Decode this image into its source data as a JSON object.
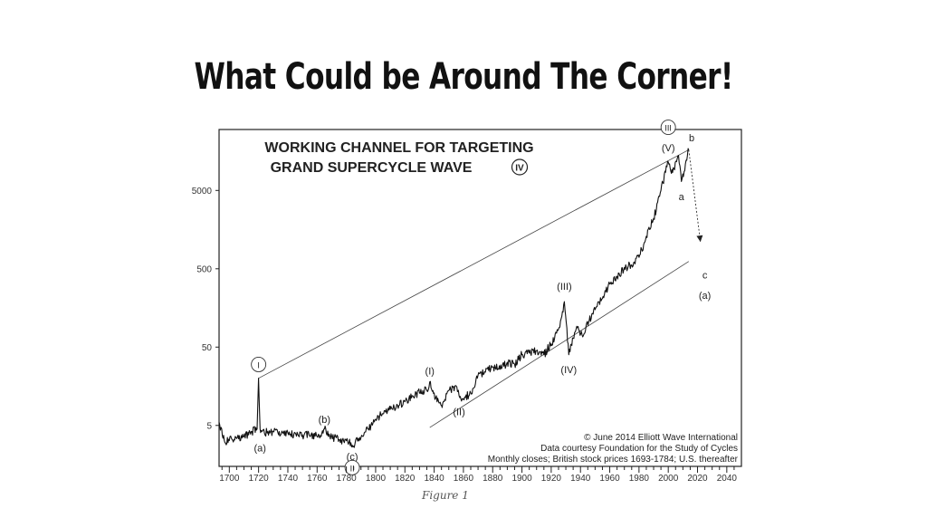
{
  "slide": {
    "title": "What Could be Around The Corner!"
  },
  "figure_caption": "Figure 1",
  "chart_data": {
    "type": "line",
    "title": "WORKING CHANNEL FOR TARGETING",
    "subtitle": "GRAND SUPERCYCLE WAVE",
    "subtitle_symbol": "IV",
    "y_scale": "log",
    "xlim": [
      1693,
      2050
    ],
    "ylim": [
      1.5,
      30000
    ],
    "x_ticks": [
      1700,
      1720,
      1740,
      1760,
      1780,
      1800,
      1820,
      1840,
      1860,
      1880,
      1900,
      1920,
      1940,
      1960,
      1980,
      2000,
      2020,
      2040
    ],
    "y_ticks": [
      5,
      50,
      500,
      5000
    ],
    "grid": false,
    "credits": [
      "© June 2014 Elliott Wave International",
      "Data courtesy Foundation for the Study of Cycles",
      "Monthly closes; British stock prices 1693-1784; U.S. thereafter"
    ],
    "series": [
      {
        "x": [
          1693,
          1697,
          1700,
          1705,
          1710,
          1715,
          1719,
          1720,
          1721,
          1724,
          1730,
          1740,
          1750,
          1760,
          1765,
          1770,
          1775,
          1780,
          1784,
          1790,
          1795,
          1800,
          1805,
          1810,
          1815,
          1820,
          1825,
          1830,
          1835,
          1837,
          1840,
          1842,
          1845,
          1850,
          1855,
          1857,
          1860,
          1865,
          1870,
          1875,
          1880,
          1885,
          1890,
          1895,
          1900,
          1905,
          1910,
          1915,
          1920,
          1925,
          1929,
          1932,
          1935,
          1937,
          1942,
          1946,
          1950,
          1955,
          1960,
          1965,
          1970,
          1975,
          1980,
          1985,
          1990,
          1995,
          2000,
          2003,
          2007,
          2009,
          2014
        ],
        "y": [
          5.5,
          3,
          3.2,
          3.4,
          3.6,
          4.2,
          4.5,
          20,
          4.5,
          4,
          4.2,
          4,
          3.8,
          3.6,
          4.5,
          3.6,
          3.3,
          3.2,
          2.8,
          3.5,
          4.5,
          6,
          7,
          8,
          9,
          10,
          12,
          13,
          14,
          18,
          13,
          10,
          9,
          14,
          16,
          12,
          11,
          13,
          22,
          24,
          28,
          26,
          32,
          30,
          40,
          42,
          45,
          40,
          55,
          85,
          190,
          40,
          65,
          85,
          70,
          110,
          150,
          210,
          320,
          400,
          520,
          560,
          700,
          1300,
          2200,
          5000,
          11500,
          8500,
          14000,
          6500,
          16500
        ]
      }
    ],
    "channel": {
      "upper": {
        "x": [
          1720,
          2014
        ],
        "y": [
          20,
          16500
        ]
      },
      "lower": {
        "x": [
          1837,
          2014
        ],
        "y": [
          4.7,
          620
        ]
      }
    },
    "projection": {
      "x": [
        2014,
        2022
      ],
      "y": [
        16500,
        1100
      ]
    },
    "wave_labels": [
      {
        "text": "I",
        "x": 1720,
        "y": 30,
        "style": "circled"
      },
      {
        "text": "(a)",
        "x": 1721,
        "y": 2.6,
        "style": "plain"
      },
      {
        "text": "(b)",
        "x": 1765,
        "y": 6,
        "style": "plain"
      },
      {
        "text": "(c)",
        "x": 1784,
        "y": 2.0,
        "style": "plain"
      },
      {
        "text": "II",
        "x": 1784,
        "y": 1.45,
        "style": "circled"
      },
      {
        "text": "(I)",
        "x": 1837,
        "y": 25,
        "style": "plain"
      },
      {
        "text": "(II)",
        "x": 1857,
        "y": 7.5,
        "style": "plain"
      },
      {
        "text": "(III)",
        "x": 1929,
        "y": 300,
        "style": "plain"
      },
      {
        "text": "(IV)",
        "x": 1932,
        "y": 26,
        "style": "plain"
      },
      {
        "text": "(V)",
        "x": 2000,
        "y": 17500,
        "style": "plain"
      },
      {
        "text": "III",
        "x": 2000,
        "y": 32000,
        "style": "circled"
      },
      {
        "text": "a",
        "x": 2009,
        "y": 4200,
        "style": "plain"
      },
      {
        "text": "b",
        "x": 2016,
        "y": 23500,
        "style": "plain"
      },
      {
        "text": "c",
        "x": 2025,
        "y": 420,
        "style": "plain"
      },
      {
        "text": "(a)",
        "x": 2025,
        "y": 230,
        "style": "plain"
      }
    ]
  }
}
